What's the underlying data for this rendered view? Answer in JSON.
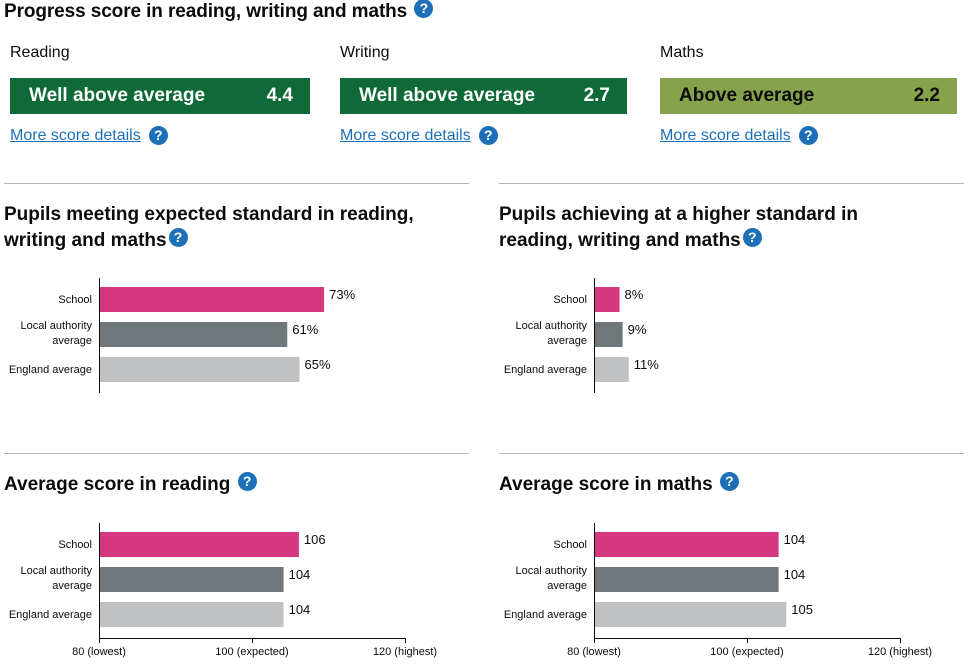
{
  "progress": {
    "title": "Progress score in reading, writing and maths",
    "subjects": [
      {
        "name": "Reading",
        "band": "Well above average",
        "score": "4.4",
        "color": "#0f6a37",
        "details": "More score details"
      },
      {
        "name": "Writing",
        "band": "Well above average",
        "score": "2.7",
        "color": "#0f6a37",
        "details": "More score details"
      },
      {
        "name": "Maths",
        "band": "Above average",
        "score": "2.2",
        "color": "#86a24a",
        "details": "More score details"
      }
    ]
  },
  "sections": {
    "expected": {
      "title": "Pupils meeting expected standard in reading, writing and maths"
    },
    "higher": {
      "title": "Pupils achieving at a higher standard in reading, writing and maths"
    },
    "reading": {
      "title": "Average score in reading"
    },
    "maths": {
      "title": "Average score in maths"
    }
  },
  "colors": {
    "school": "#d53880",
    "local": "#6f777b",
    "england": "#bfc1c3",
    "accent": "#1d70b8"
  },
  "chart_data": [
    {
      "type": "bar",
      "orientation": "horizontal",
      "title": "Pupils meeting expected standard in reading, writing and maths",
      "categories": [
        "School",
        "Local authority average",
        "England average"
      ],
      "values": [
        73,
        61,
        65
      ],
      "value_labels": [
        "73%",
        "61%",
        "65%"
      ],
      "xlim": [
        0,
        100
      ]
    },
    {
      "type": "bar",
      "orientation": "horizontal",
      "title": "Pupils achieving at a higher standard in reading, writing and maths",
      "categories": [
        "School",
        "Local authority average",
        "England average"
      ],
      "values": [
        8,
        9,
        11
      ],
      "value_labels": [
        "8%",
        "9%",
        "11%"
      ],
      "xlim": [
        0,
        100
      ]
    },
    {
      "type": "bar",
      "orientation": "horizontal",
      "title": "Average score in reading",
      "categories": [
        "School",
        "Local authority average",
        "England average"
      ],
      "values": [
        106,
        104,
        104
      ],
      "value_labels": [
        "106",
        "104",
        "104"
      ],
      "xlim": [
        80,
        120
      ],
      "ticks": [
        {
          "value": 80,
          "label": "80 (lowest)"
        },
        {
          "value": 100,
          "label": "100 (expected)"
        },
        {
          "value": 120,
          "label": "120 (highest)"
        }
      ]
    },
    {
      "type": "bar",
      "orientation": "horizontal",
      "title": "Average score in maths",
      "categories": [
        "School",
        "Local authority average",
        "England average"
      ],
      "values": [
        104,
        104,
        105
      ],
      "value_labels": [
        "104",
        "104",
        "105"
      ],
      "xlim": [
        80,
        120
      ],
      "ticks": [
        {
          "value": 80,
          "label": "80 (lowest)"
        },
        {
          "value": 100,
          "label": "100 (expected)"
        },
        {
          "value": 120,
          "label": "120 (highest)"
        }
      ]
    }
  ]
}
